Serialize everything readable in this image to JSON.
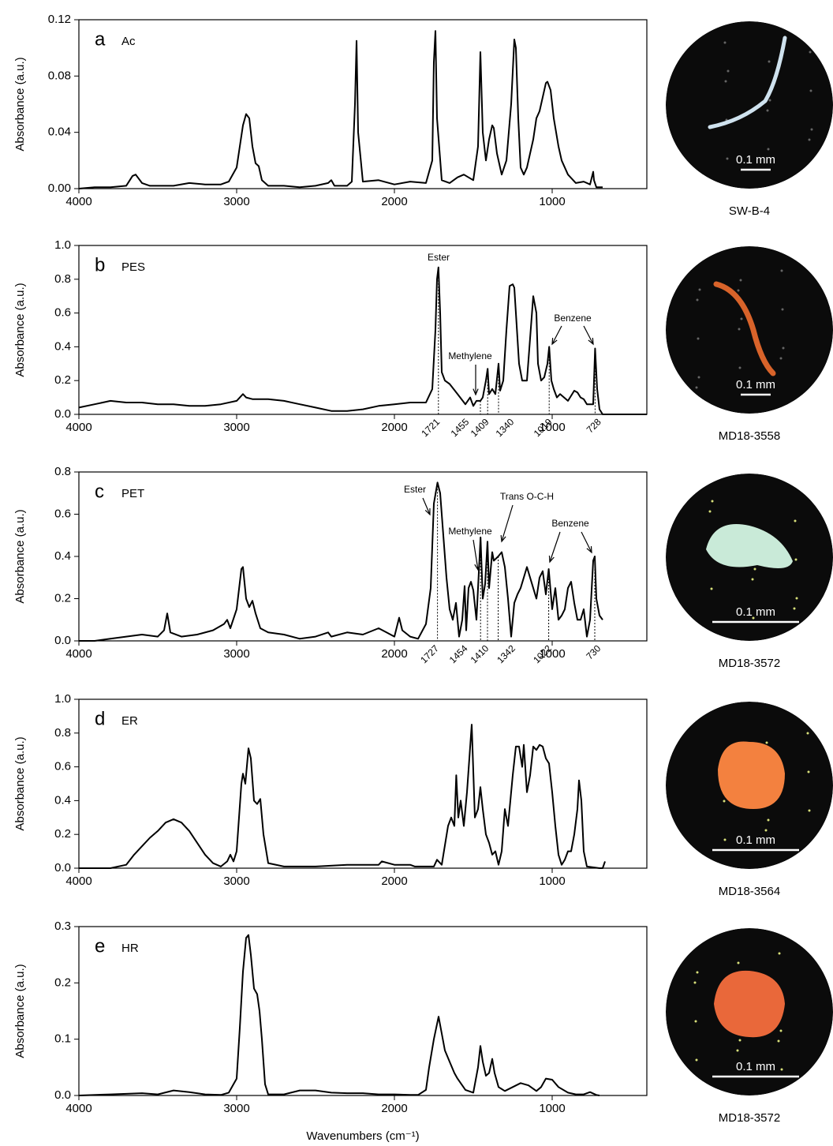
{
  "chart_data": [
    {
      "type": "line",
      "panel_label": "a",
      "name": "Ac",
      "y_label": "Absorbance (a.u.)",
      "color": "#000000",
      "xlim": [
        4000,
        400
      ],
      "xticks": [
        4000,
        3000,
        2000,
        1000
      ],
      "ylim": [
        0,
        0.12
      ],
      "yticks": [
        {
          "value": 0,
          "label": "0.00"
        },
        0.04,
        0.08,
        0.12
      ],
      "x": [
        4000,
        3900,
        3800,
        3700,
        3660,
        3640,
        3600,
        3550,
        3500,
        3400,
        3300,
        3200,
        3100,
        3050,
        3000,
        2980,
        2960,
        2940,
        2920,
        2900,
        2880,
        2860,
        2840,
        2800,
        2700,
        2600,
        2500,
        2420,
        2400,
        2380,
        2300,
        2270,
        2250,
        2240,
        2230,
        2200,
        2100,
        2000,
        1900,
        1800,
        1760,
        1750,
        1740,
        1730,
        1700,
        1650,
        1600,
        1560,
        1500,
        1470,
        1455,
        1440,
        1420,
        1400,
        1380,
        1370,
        1350,
        1320,
        1290,
        1260,
        1240,
        1230,
        1215,
        1200,
        1180,
        1160,
        1120,
        1100,
        1080,
        1060,
        1040,
        1030,
        1010,
        990,
        960,
        940,
        900,
        850,
        800,
        760,
        740,
        735,
        720,
        700,
        680
      ],
      "values": [
        0,
        0.001,
        0.001,
        0.002,
        0.009,
        0.01,
        0.004,
        0.002,
        0.002,
        0.002,
        0.004,
        0.003,
        0.003,
        0.005,
        0.015,
        0.03,
        0.045,
        0.053,
        0.05,
        0.03,
        0.018,
        0.016,
        0.006,
        0.002,
        0.002,
        0.001,
        0.002,
        0.004,
        0.006,
        0.002,
        0.002,
        0.005,
        0.06,
        0.105,
        0.04,
        0.005,
        0.006,
        0.003,
        0.005,
        0.004,
        0.02,
        0.09,
        0.112,
        0.05,
        0.006,
        0.004,
        0.008,
        0.01,
        0.006,
        0.03,
        0.097,
        0.04,
        0.02,
        0.035,
        0.045,
        0.043,
        0.025,
        0.01,
        0.02,
        0.06,
        0.106,
        0.1,
        0.05,
        0.015,
        0.01,
        0.015,
        0.035,
        0.05,
        0.055,
        0.065,
        0.075,
        0.076,
        0.07,
        0.05,
        0.03,
        0.02,
        0.01,
        0.004,
        0.005,
        0.003,
        0.012,
        0.006,
        0.001,
        0.001,
        0.001
      ],
      "image": {
        "caption": "SW-B-4",
        "scale_bar": "0.1 mm"
      }
    },
    {
      "type": "line",
      "panel_label": "b",
      "name": "PES",
      "y_label": "Absorbance (a.u.)",
      "color": "#000000",
      "xlim": [
        4000,
        400
      ],
      "xticks": [
        4000,
        3000,
        2000,
        1000
      ],
      "ylim": [
        0,
        1
      ],
      "yticks": [
        {
          "value": 0,
          "label": "0.0"
        },
        0.2,
        0.4,
        0.6,
        0.8,
        {
          "value": 1,
          "label": "1.0"
        }
      ],
      "x": [
        4000,
        3900,
        3800,
        3700,
        3600,
        3500,
        3400,
        3300,
        3200,
        3100,
        3000,
        2960,
        2940,
        2900,
        2800,
        2700,
        2600,
        2500,
        2400,
        2300,
        2200,
        2100,
        2000,
        1900,
        1800,
        1760,
        1740,
        1730,
        1721,
        1710,
        1700,
        1680,
        1650,
        1600,
        1550,
        1520,
        1500,
        1480,
        1455,
        1440,
        1420,
        1409,
        1400,
        1380,
        1360,
        1340,
        1330,
        1310,
        1290,
        1270,
        1250,
        1240,
        1230,
        1210,
        1190,
        1160,
        1140,
        1120,
        1100,
        1090,
        1070,
        1050,
        1030,
        1019,
        1005,
        990,
        970,
        950,
        900,
        860,
        840,
        820,
        800,
        780,
        740,
        728,
        715,
        700,
        680,
        660,
        400
      ],
      "values": [
        0.04,
        0.06,
        0.08,
        0.07,
        0.07,
        0.06,
        0.06,
        0.05,
        0.05,
        0.06,
        0.08,
        0.12,
        0.1,
        0.09,
        0.09,
        0.08,
        0.06,
        0.04,
        0.02,
        0.02,
        0.03,
        0.05,
        0.06,
        0.07,
        0.07,
        0.15,
        0.5,
        0.8,
        0.87,
        0.6,
        0.25,
        0.2,
        0.18,
        0.12,
        0.06,
        0.1,
        0.05,
        0.08,
        0.08,
        0.1,
        0.2,
        0.27,
        0.12,
        0.15,
        0.12,
        0.3,
        0.14,
        0.2,
        0.5,
        0.76,
        0.77,
        0.75,
        0.6,
        0.3,
        0.2,
        0.2,
        0.45,
        0.7,
        0.6,
        0.3,
        0.2,
        0.22,
        0.3,
        0.4,
        0.2,
        0.15,
        0.1,
        0.12,
        0.08,
        0.14,
        0.13,
        0.1,
        0.09,
        0.06,
        0.06,
        0.39,
        0.15,
        0.03,
        0,
        0,
        0
      ],
      "annotations": [
        {
          "text": "Ester"
        },
        {
          "text": "Methylene"
        },
        {
          "text": "Benzene"
        }
      ],
      "peaks": [
        1721,
        1455,
        1409,
        1340,
        1019,
        728
      ],
      "image": {
        "caption": "MD18-3558",
        "scale_bar": "0.1 mm"
      }
    },
    {
      "type": "line",
      "panel_label": "c",
      "name": "PET",
      "y_label": "Absorbance (a.u.)",
      "color": "#000000",
      "xlim": [
        4000,
        400
      ],
      "xticks": [
        4000,
        3000,
        2000,
        1000
      ],
      "ylim": [
        0,
        0.8
      ],
      "yticks": [
        {
          "value": 0,
          "label": "0.0"
        },
        0.2,
        0.4,
        0.6,
        0.8
      ],
      "x": [
        4000,
        3900,
        3800,
        3700,
        3600,
        3500,
        3460,
        3440,
        3420,
        3350,
        3250,
        3150,
        3080,
        3060,
        3040,
        3000,
        2970,
        2960,
        2940,
        2920,
        2900,
        2880,
        2850,
        2800,
        2700,
        2600,
        2500,
        2420,
        2400,
        2300,
        2200,
        2100,
        2050,
        2000,
        1970,
        1950,
        1900,
        1850,
        1800,
        1770,
        1750,
        1727,
        1710,
        1690,
        1670,
        1650,
        1630,
        1610,
        1590,
        1570,
        1555,
        1545,
        1530,
        1515,
        1500,
        1480,
        1454,
        1440,
        1425,
        1410,
        1400,
        1380,
        1370,
        1342,
        1320,
        1300,
        1280,
        1260,
        1240,
        1220,
        1200,
        1180,
        1160,
        1140,
        1120,
        1100,
        1080,
        1060,
        1040,
        1022,
        1000,
        980,
        960,
        940,
        920,
        900,
        880,
        860,
        840,
        820,
        800,
        780,
        760,
        740,
        730,
        720,
        700,
        680
      ],
      "values": [
        0,
        0,
        0.01,
        0.02,
        0.03,
        0.02,
        0.05,
        0.13,
        0.04,
        0.02,
        0.03,
        0.05,
        0.08,
        0.1,
        0.06,
        0.15,
        0.34,
        0.35,
        0.2,
        0.16,
        0.19,
        0.13,
        0.06,
        0.04,
        0.03,
        0.01,
        0.02,
        0.04,
        0.02,
        0.04,
        0.03,
        0.06,
        0.04,
        0.02,
        0.11,
        0.05,
        0.02,
        0.01,
        0.08,
        0.25,
        0.65,
        0.75,
        0.7,
        0.5,
        0.3,
        0.15,
        0.1,
        0.18,
        0.02,
        0.1,
        0.26,
        0.05,
        0.25,
        0.28,
        0.24,
        0.1,
        0.49,
        0.2,
        0.27,
        0.47,
        0.25,
        0.42,
        0.38,
        0.4,
        0.42,
        0.35,
        0.2,
        0.02,
        0.18,
        0.22,
        0.25,
        0.3,
        0.35,
        0.3,
        0.25,
        0.2,
        0.3,
        0.33,
        0.22,
        0.34,
        0.15,
        0.25,
        0.1,
        0.12,
        0.15,
        0.25,
        0.28,
        0.18,
        0.1,
        0.1,
        0.15,
        0.02,
        0.1,
        0.38,
        0.4,
        0.2,
        0.12,
        0.1
      ],
      "annotations": [
        {
          "text": "Ester"
        },
        {
          "text": "Methylene"
        },
        {
          "text": "Trans O-C-H"
        },
        {
          "text": "Benzene"
        }
      ],
      "peaks": [
        1727,
        1454,
        1410,
        1342,
        1022,
        730
      ],
      "image": {
        "caption": "MD18-3572",
        "scale_bar": "0.1 mm"
      }
    },
    {
      "type": "line",
      "panel_label": "d",
      "name": "ER",
      "y_label": "Absorbance (a.u.)",
      "color": "#000000",
      "xlim": [
        4000,
        400
      ],
      "xticks": [
        4000,
        3000,
        2000,
        1000
      ],
      "ylim": [
        0,
        1
      ],
      "yticks": [
        {
          "value": 0,
          "label": "0.0"
        },
        0.2,
        0.4,
        0.6,
        0.8,
        {
          "value": 1,
          "label": "1.0"
        }
      ],
      "x": [
        4000,
        3900,
        3800,
        3700,
        3650,
        3600,
        3550,
        3500,
        3450,
        3400,
        3350,
        3300,
        3250,
        3200,
        3150,
        3100,
        3060,
        3040,
        3020,
        3000,
        2970,
        2960,
        2945,
        2925,
        2910,
        2890,
        2870,
        2850,
        2830,
        2800,
        2700,
        2500,
        2300,
        2100,
        2080,
        2000,
        1900,
        1870,
        1750,
        1730,
        1700,
        1660,
        1640,
        1620,
        1608,
        1595,
        1580,
        1560,
        1540,
        1510,
        1490,
        1470,
        1455,
        1440,
        1420,
        1400,
        1380,
        1360,
        1340,
        1320,
        1300,
        1280,
        1250,
        1230,
        1210,
        1190,
        1180,
        1160,
        1140,
        1120,
        1100,
        1080,
        1060,
        1040,
        1020,
        1000,
        980,
        960,
        940,
        920,
        900,
        880,
        860,
        840,
        830,
        815,
        800,
        780,
        700,
        680,
        665
      ],
      "values": [
        0,
        0,
        0,
        0.02,
        0.08,
        0.13,
        0.18,
        0.22,
        0.27,
        0.29,
        0.27,
        0.22,
        0.15,
        0.08,
        0.03,
        0.01,
        0.04,
        0.08,
        0.04,
        0.1,
        0.5,
        0.56,
        0.5,
        0.71,
        0.65,
        0.4,
        0.38,
        0.41,
        0.2,
        0.03,
        0.01,
        0.01,
        0.02,
        0.02,
        0.04,
        0.02,
        0.02,
        0.01,
        0.01,
        0.05,
        0.02,
        0.25,
        0.3,
        0.25,
        0.55,
        0.3,
        0.4,
        0.25,
        0.45,
        0.85,
        0.3,
        0.35,
        0.48,
        0.35,
        0.2,
        0.15,
        0.08,
        0.1,
        0.02,
        0.1,
        0.35,
        0.25,
        0.55,
        0.72,
        0.72,
        0.6,
        0.73,
        0.45,
        0.55,
        0.72,
        0.7,
        0.73,
        0.72,
        0.65,
        0.62,
        0.45,
        0.25,
        0.08,
        0.02,
        0.05,
        0.1,
        0.1,
        0.2,
        0.35,
        0.52,
        0.4,
        0.1,
        0.01,
        0,
        0,
        0.04
      ],
      "image": {
        "caption": "MD18-3564",
        "scale_bar": "0.1 mm"
      }
    },
    {
      "type": "line",
      "panel_label": "e",
      "name": "HR",
      "y_label": "Absorbance (a.u.)",
      "x_label": "Wavenumbers (cm⁻¹)",
      "color": "#000000",
      "xlim": [
        4000,
        400
      ],
      "xticks": [
        4000,
        3000,
        2000,
        1000
      ],
      "ylim": [
        0,
        0.3
      ],
      "yticks": [
        {
          "value": 0,
          "label": "0.0"
        },
        0.1,
        0.2,
        0.3
      ],
      "x": [
        4000,
        3800,
        3600,
        3500,
        3400,
        3300,
        3200,
        3100,
        3050,
        3000,
        2980,
        2960,
        2940,
        2925,
        2910,
        2890,
        2870,
        2855,
        2840,
        2820,
        2800,
        2700,
        2600,
        2500,
        2400,
        2300,
        2200,
        2100,
        2000,
        1900,
        1850,
        1800,
        1780,
        1750,
        1720,
        1700,
        1680,
        1650,
        1620,
        1600,
        1550,
        1500,
        1470,
        1455,
        1440,
        1420,
        1400,
        1380,
        1365,
        1340,
        1300,
        1250,
        1200,
        1150,
        1100,
        1070,
        1040,
        1000,
        960,
        900,
        850,
        800,
        760,
        720,
        700
      ],
      "values": [
        0,
        0.002,
        0.004,
        0.002,
        0.009,
        0.006,
        0.002,
        0.001,
        0.005,
        0.03,
        0.12,
        0.22,
        0.28,
        0.285,
        0.25,
        0.19,
        0.18,
        0.15,
        0.1,
        0.02,
        0.002,
        0.002,
        0.009,
        0.009,
        0.005,
        0.004,
        0.004,
        0.002,
        0.002,
        0.001,
        0.001,
        0.01,
        0.05,
        0.1,
        0.14,
        0.11,
        0.08,
        0.06,
        0.04,
        0.03,
        0.01,
        0.005,
        0.05,
        0.088,
        0.06,
        0.035,
        0.04,
        0.065,
        0.04,
        0.015,
        0.008,
        0.015,
        0.022,
        0.018,
        0.008,
        0.015,
        0.03,
        0.028,
        0.015,
        0.005,
        0.002,
        0.002,
        0.006,
        0.001,
        0
      ],
      "image": {
        "caption": "MD18-3572",
        "scale_bar": "0.1 mm"
      }
    }
  ]
}
